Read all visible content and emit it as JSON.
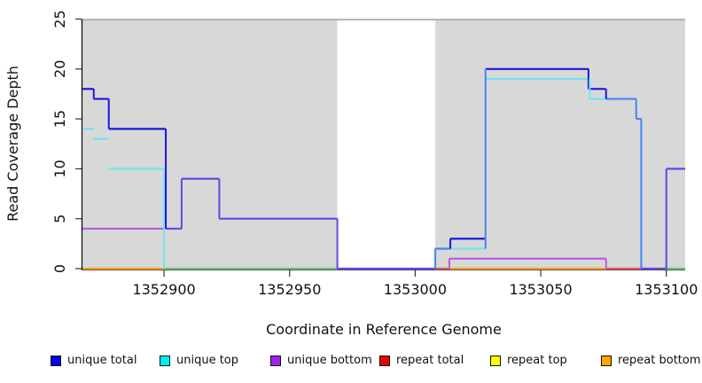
{
  "chart_data": {
    "type": "line",
    "subtype": "step-coverage-profile",
    "title": "",
    "xlabel": "Coordinate in Reference Genome",
    "ylabel": "Read Coverage Depth",
    "x_range": [
      1352867.5,
      1353107.5
    ],
    "y_range": [
      0,
      25
    ],
    "x_ticks": [
      1352900,
      1352950,
      1353000,
      1353050,
      1353100
    ],
    "y_ticks": [
      0,
      5,
      10,
      15,
      20,
      25
    ],
    "grid": false,
    "legend_position": "bottom",
    "shaded_regions": [
      {
        "x1": 1352867.5,
        "x2": 1352969,
        "meaning": "covered region"
      },
      {
        "x1": 1353008,
        "x2": 1353107.5,
        "meaning": "covered region"
      }
    ],
    "gap_region": {
      "x1": 1352969,
      "x2": 1353008,
      "meaning": "no shading (white gap)"
    },
    "series": [
      {
        "name": "unique total",
        "color": "#0000ee",
        "steps": [
          [
            1352867.5,
            18
          ],
          [
            1352872,
            17
          ],
          [
            1352878,
            14
          ],
          [
            1352900,
            4
          ],
          [
            1352907,
            9
          ],
          [
            1352922,
            5
          ],
          [
            1352969,
            0
          ],
          [
            1353008,
            2
          ],
          [
            1353014,
            3
          ],
          [
            1353028,
            20
          ],
          [
            1353069,
            18
          ],
          [
            1353076,
            17
          ],
          [
            1353088,
            15
          ],
          [
            1353090,
            0
          ],
          [
            1353100,
            10
          ]
        ]
      },
      {
        "name": "unique top",
        "color": "#00eeee",
        "steps": [
          [
            1352867.5,
            14
          ],
          [
            1352872,
            13
          ],
          [
            1352878,
            10
          ],
          [
            1352900,
            0
          ],
          [
            1353008,
            2
          ],
          [
            1353028,
            19
          ],
          [
            1353069,
            17
          ],
          [
            1353090,
            0
          ]
        ]
      },
      {
        "name": "unique bottom",
        "color": "#a020f0",
        "steps": [
          [
            1352867.5,
            4
          ],
          [
            1352907,
            9
          ],
          [
            1352922,
            5
          ],
          [
            1352969,
            0
          ],
          [
            1353014,
            1
          ],
          [
            1353076,
            0
          ],
          [
            1353100,
            10
          ]
        ]
      },
      {
        "name": "repeat total",
        "color": "#ee0000",
        "steps": [
          [
            1352867.5,
            0
          ]
        ]
      },
      {
        "name": "repeat top",
        "color": "#ffff00",
        "steps": [
          [
            1352867.5,
            0
          ]
        ]
      },
      {
        "name": "repeat bottom",
        "color": "#ffa500",
        "steps": [
          [
            1352867.5,
            0
          ]
        ]
      }
    ],
    "legend": [
      {
        "label": "unique total",
        "color": "#0000ee"
      },
      {
        "label": "unique top",
        "color": "#00eeee"
      },
      {
        "label": "unique bottom",
        "color": "#a020f0"
      },
      {
        "label": "repeat total",
        "color": "#ee0000"
      },
      {
        "label": "repeat top",
        "color": "#ffff00"
      },
      {
        "label": "repeat bottom",
        "color": "#ffa500"
      }
    ],
    "colors": {
      "panel": "#d8d8d8",
      "topline": "#ababab",
      "axis": "#000000",
      "blue": "#1a16dc",
      "violet": "#6247e5",
      "dodger": "#4285f4",
      "cyan": "#6fe3f2",
      "purple": "#b45fe0",
      "orange": "#ff9d26",
      "red": "#e05468",
      "green": "#6dc472",
      "yellow": "#ffff00"
    },
    "render": {
      "h_segments": [
        [
          "green",
          1352900,
          1352969,
          0
        ],
        [
          "green",
          1353100,
          1353107.5,
          0
        ],
        [
          "red",
          1353008,
          1353014,
          0
        ],
        [
          "red",
          1353076,
          1353090,
          0
        ],
        [
          "orange",
          1352867.5,
          1352900,
          0
        ],
        [
          "orange",
          1353014,
          1353076,
          0
        ],
        [
          "purple",
          1352867.5,
          1352900,
          4
        ],
        [
          "purple",
          1353013.6,
          1353076,
          1
        ],
        [
          "cyan",
          1352867.5,
          1352872,
          14
        ],
        [
          "cyan",
          1352872,
          1352878,
          13
        ],
        [
          "cyan",
          1352878,
          1352900,
          10
        ],
        [
          "cyan",
          1353014,
          1353028,
          2
        ],
        [
          "cyan",
          1353028,
          1353069.5,
          19
        ],
        [
          "cyan",
          1353069.5,
          1353076,
          17
        ],
        [
          "blue",
          1352867.5,
          1352872,
          18
        ],
        [
          "blue",
          1352872,
          1352878,
          17
        ],
        [
          "blue",
          1352878,
          1352900.7,
          14
        ],
        [
          "violet",
          1352900.7,
          1352907,
          4
        ],
        [
          "violet",
          1352907,
          1352922,
          9
        ],
        [
          "violet",
          1352922,
          1352969,
          5
        ],
        [
          "violet",
          1352969,
          1353008,
          0
        ],
        [
          "dodger",
          1353008,
          1353014,
          2
        ],
        [
          "blue",
          1353014,
          1353028,
          3
        ],
        [
          "blue",
          1353028,
          1353069,
          20
        ],
        [
          "blue",
          1353069,
          1353076,
          18
        ],
        [
          "dodger",
          1353076,
          1353088,
          17
        ],
        [
          "dodger",
          1353088,
          1353090,
          15
        ],
        [
          "violet",
          1353090,
          1353100,
          0
        ],
        [
          "violet",
          1353100,
          1353107.5,
          10
        ]
      ],
      "v_segments": [
        [
          "cyan",
          1352900,
          0,
          10
        ],
        [
          "blue",
          1352900.7,
          4,
          14
        ],
        [
          "blue",
          1352872,
          17,
          18
        ],
        [
          "blue",
          1352878,
          14,
          17
        ],
        [
          "violet",
          1352907,
          4,
          9
        ],
        [
          "violet",
          1352922,
          5,
          9
        ],
        [
          "violet",
          1352969,
          0,
          5
        ],
        [
          "dodger",
          1353008,
          0,
          2
        ],
        [
          "purple",
          1353013.6,
          0,
          1
        ],
        [
          "blue",
          1353014,
          2,
          3
        ],
        [
          "dodger",
          1353028,
          2,
          20
        ],
        [
          "blue",
          1353069,
          18,
          20
        ],
        [
          "cyan",
          1353069.5,
          17,
          19
        ],
        [
          "purple",
          1353076,
          0,
          1
        ],
        [
          "blue",
          1353076,
          17,
          18
        ],
        [
          "dodger",
          1353088,
          15,
          17
        ],
        [
          "dodger",
          1353090,
          0,
          15
        ],
        [
          "violet",
          1353100,
          0,
          10
        ]
      ]
    }
  }
}
